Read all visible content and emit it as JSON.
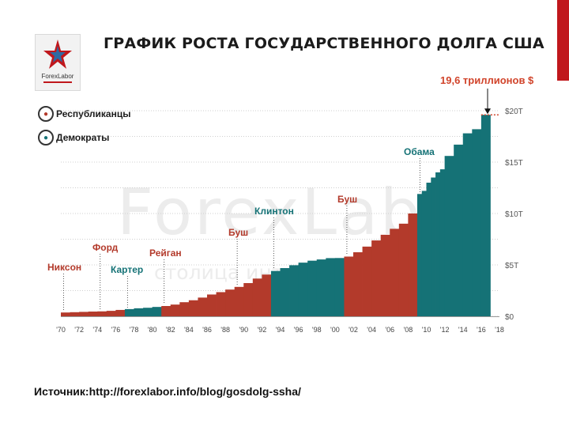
{
  "title": "ГРАФИК РОСТА ГОСУДАРСТВЕННОГО ДОЛГА США",
  "logo": {
    "text": "ForexLabor",
    "icon": "star-logo-icon"
  },
  "watermark": {
    "main": "ForexLabor",
    "sub": "столица интернет трейдинга"
  },
  "legend": [
    {
      "label": "Республиканцы",
      "icon": "elephant-icon",
      "color": "#b33a2b"
    },
    {
      "label": "Демократы",
      "icon": "donkey-icon",
      "color": "#157276"
    }
  ],
  "source": "Источник:http://forexlabor.info/blog/gosdolg-ssha/",
  "colors": {
    "republican": "#b33a2b",
    "democrat": "#157276",
    "accent": "#c0171c",
    "callout": "#d1442b"
  },
  "chart_data": {
    "type": "bar",
    "x_ticks": [
      "'70",
      "'72",
      "'74",
      "'76",
      "'78",
      "'80",
      "'82",
      "'84",
      "'86",
      "'88",
      "'90",
      "'92",
      "'94",
      "'96",
      "'98",
      "'00",
      "'02",
      "'04",
      "'06",
      "'08",
      "'10",
      "'12",
      "'14",
      "'16",
      "'18"
    ],
    "y_ticks": [
      "$0",
      "$5T",
      "$10T",
      "$15T",
      "$20T"
    ],
    "ylim": [
      0,
      20
    ],
    "xlim": [
      1970,
      2018
    ],
    "grid": true,
    "callout": {
      "text": "19,6 триллионов $",
      "value": 19.6
    },
    "presidencies": [
      {
        "name": "Никсон",
        "party": "R",
        "start": 1970,
        "end": 1974
      },
      {
        "name": "Форд",
        "party": "R",
        "start": 1974,
        "end": 1977
      },
      {
        "name": "Картер",
        "party": "D",
        "start": 1977,
        "end": 1981
      },
      {
        "name": "Рейган",
        "party": "R",
        "start": 1981,
        "end": 1989
      },
      {
        "name": "Буш",
        "party": "R",
        "start": 1989,
        "end": 1993
      },
      {
        "name": "Клинтон",
        "party": "D",
        "start": 1993,
        "end": 2001
      },
      {
        "name": "Буш",
        "party": "R",
        "start": 2001,
        "end": 2009
      },
      {
        "name": "Обама",
        "party": "D",
        "start": 2009,
        "end": 2017
      }
    ],
    "years": [
      1970,
      1971,
      1972,
      1973,
      1974,
      1975,
      1976,
      1977,
      1978,
      1979,
      1980,
      1981,
      1982,
      1983,
      1984,
      1985,
      1986,
      1987,
      1988,
      1989,
      1990,
      1991,
      1992,
      1993,
      1994,
      1995,
      1996,
      1997,
      1998,
      1999,
      2000,
      2001,
      2002,
      2003,
      2004,
      2005,
      2006,
      2007,
      2008,
      2009,
      2009.5,
      2010,
      2010.5,
      2011,
      2011.5,
      2012,
      2013,
      2014,
      2015,
      2016
    ],
    "values": [
      0.37,
      0.4,
      0.43,
      0.46,
      0.48,
      0.53,
      0.62,
      0.7,
      0.78,
      0.83,
      0.91,
      1.0,
      1.14,
      1.37,
      1.56,
      1.82,
      2.12,
      2.35,
      2.6,
      2.86,
      3.23,
      3.67,
      4.06,
      4.41,
      4.69,
      4.97,
      5.22,
      5.41,
      5.53,
      5.66,
      5.67,
      5.81,
      6.23,
      6.78,
      7.38,
      7.93,
      8.51,
      9.01,
      10.0,
      11.9,
      12.2,
      13.0,
      13.5,
      14.0,
      14.3,
      15.6,
      16.7,
      17.8,
      18.2,
      19.6
    ]
  }
}
